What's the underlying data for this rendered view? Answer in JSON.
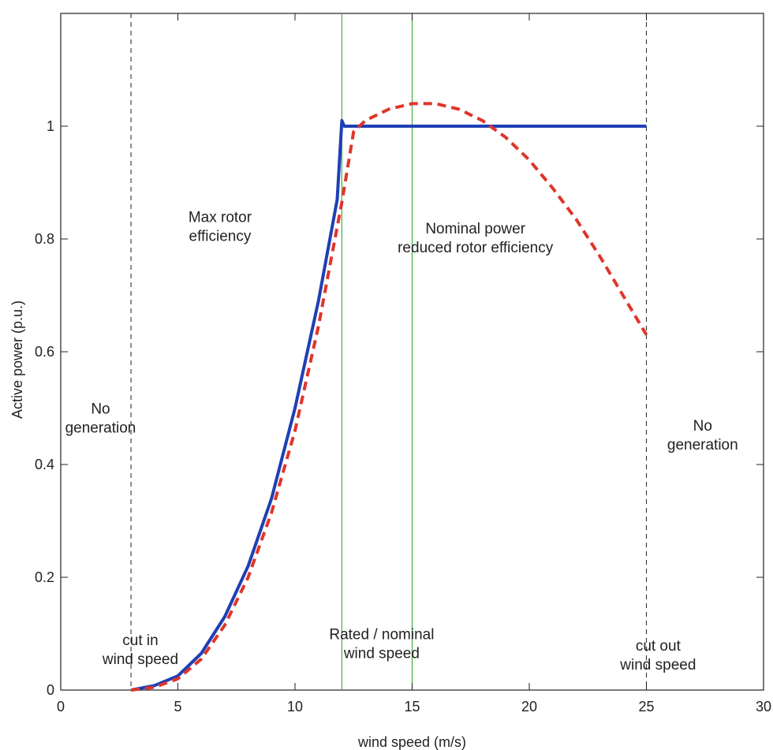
{
  "chart_data": {
    "type": "line",
    "xlabel": "wind speed (m/s)",
    "ylabel": "Active power (p.u.)",
    "xlim": [
      0,
      30
    ],
    "ylim": [
      0,
      1.2
    ],
    "x_ticks": [
      "0",
      "5",
      "10",
      "15",
      "20",
      "25",
      "30"
    ],
    "y_ticks": [
      "0",
      "0.2",
      "0.4",
      "0.6",
      "0.8",
      "1"
    ],
    "grid": false,
    "colors": {
      "series_solid": "#1f3fb4",
      "series_dashed": "#e0352b",
      "green_lines": "#3cb043",
      "cut_lines": "#333333"
    },
    "series": [
      {
        "line_style": "solid",
        "x": [
          3,
          4,
          5,
          6,
          7,
          8,
          9,
          10,
          11,
          11.8,
          12,
          12.1,
          25
        ],
        "y": [
          0,
          0.008,
          0.025,
          0.065,
          0.13,
          0.22,
          0.34,
          0.5,
          0.69,
          0.87,
          1.01,
          1.0,
          1.0
        ]
      },
      {
        "line_style": "dashed",
        "x": [
          3,
          4,
          5,
          6,
          7,
          8,
          9,
          10,
          11,
          12,
          12.5,
          13,
          14,
          15,
          16,
          17,
          18,
          19,
          20,
          21,
          22,
          23,
          24,
          25
        ],
        "y": [
          0,
          0.005,
          0.02,
          0.055,
          0.115,
          0.2,
          0.315,
          0.46,
          0.645,
          0.865,
          0.99,
          1.01,
          1.03,
          1.04,
          1.04,
          1.03,
          1.01,
          0.98,
          0.94,
          0.89,
          0.835,
          0.77,
          0.7,
          0.63
        ]
      }
    ],
    "vertical_lines": [
      {
        "x": 3,
        "style": "cut"
      },
      {
        "x": 12,
        "style": "green"
      },
      {
        "x": 15,
        "style": "green"
      },
      {
        "x": 25,
        "style": "cut"
      }
    ],
    "annotations": [
      {
        "lines": [
          "No",
          "generation"
        ],
        "x": 1.7,
        "y": 0.49
      },
      {
        "lines": [
          "Max rotor",
          "efficiency"
        ],
        "x": 6.8,
        "y": 0.83
      },
      {
        "lines": [
          "Nominal power",
          "reduced rotor efficiency"
        ],
        "x": 17.7,
        "y": 0.81
      },
      {
        "lines": [
          "No",
          "generation"
        ],
        "x": 27.4,
        "y": 0.46
      },
      {
        "lines": [
          "cut in",
          "wind speed"
        ],
        "x": 3.4,
        "y": 0.08
      },
      {
        "lines": [
          "Rated / nominal",
          "wind speed"
        ],
        "x": 13.7,
        "y": 0.09
      },
      {
        "lines": [
          "cut out",
          "wind speed"
        ],
        "x": 25.5,
        "y": 0.07
      }
    ]
  }
}
